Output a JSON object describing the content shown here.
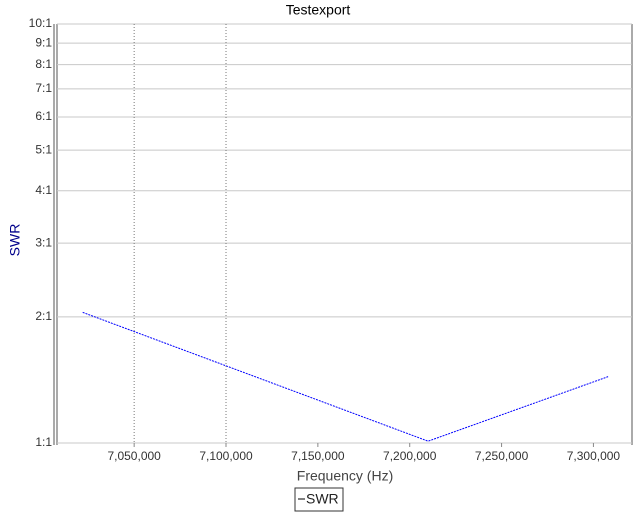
{
  "chart_data": {
    "type": "line",
    "title": "Testexport",
    "x_label": "Frequency (Hz)",
    "y_label": "SWR",
    "x": [
      7022000,
      7210000,
      7308000
    ],
    "series": [
      {
        "name": "SWR",
        "color": "#0000ff",
        "values": [
          2.05,
          1.01,
          1.44
        ]
      }
    ],
    "xlim": [
      7008000,
      7321000
    ],
    "xticks": [
      {
        "value": 7050000,
        "label": "7,050,000"
      },
      {
        "value": 7100000,
        "label": "7,100,000"
      },
      {
        "value": 7150000,
        "label": "7,150,000"
      },
      {
        "value": 7200000,
        "label": "7,200,000"
      },
      {
        "value": 7250000,
        "label": "7,250,000"
      },
      {
        "value": 7300000,
        "label": "7,300,000"
      }
    ],
    "ylim": [
      1,
      10
    ],
    "ylog": true,
    "yticks": [
      {
        "value": 1,
        "label": "1:1"
      },
      {
        "value": 2,
        "label": "2:1"
      },
      {
        "value": 3,
        "label": "3:1"
      },
      {
        "value": 4,
        "label": "4:1"
      },
      {
        "value": 5,
        "label": "5:1"
      },
      {
        "value": 6,
        "label": "6:1"
      },
      {
        "value": 7,
        "label": "7:1"
      },
      {
        "value": 8,
        "label": "8:1"
      },
      {
        "value": 9,
        "label": "9:1"
      },
      {
        "value": 10,
        "label": "10:1"
      }
    ],
    "markers": [
      7050000,
      7100000
    ],
    "grid": true,
    "legend": "bottom"
  }
}
